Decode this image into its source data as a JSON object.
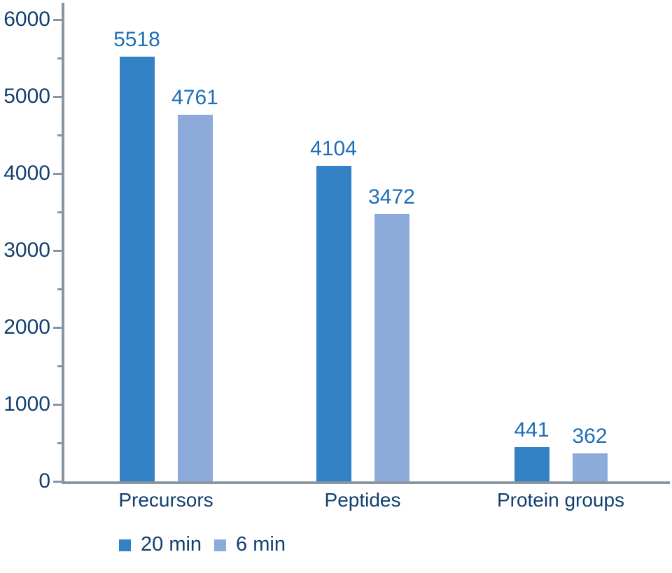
{
  "chart_data": {
    "type": "bar",
    "title": "",
    "categories": [
      "Precursors",
      "Peptides",
      "Protein groups"
    ],
    "series": [
      {
        "name": "20 min",
        "color": "#3282c5",
        "values": [
          5518,
          4104,
          441
        ]
      },
      {
        "name": "6 min",
        "color": "#8cabdb",
        "values": [
          4761,
          3472,
          362
        ]
      }
    ],
    "ylim": [
      0,
      6000
    ],
    "yticks": [
      0,
      1000,
      2000,
      3000,
      4000,
      5000,
      6000
    ],
    "minor_tick_step": 500,
    "grid": false,
    "value_labels": true,
    "legend_position": "bottom-left",
    "xlabel": "",
    "ylabel": ""
  },
  "colors": {
    "background": "#ffffff",
    "axis_line": "#8996a0",
    "axis_text": "#123f6f",
    "value_label": "#1e6eb7",
    "series": [
      "#3282c5",
      "#8cabdb"
    ]
  }
}
